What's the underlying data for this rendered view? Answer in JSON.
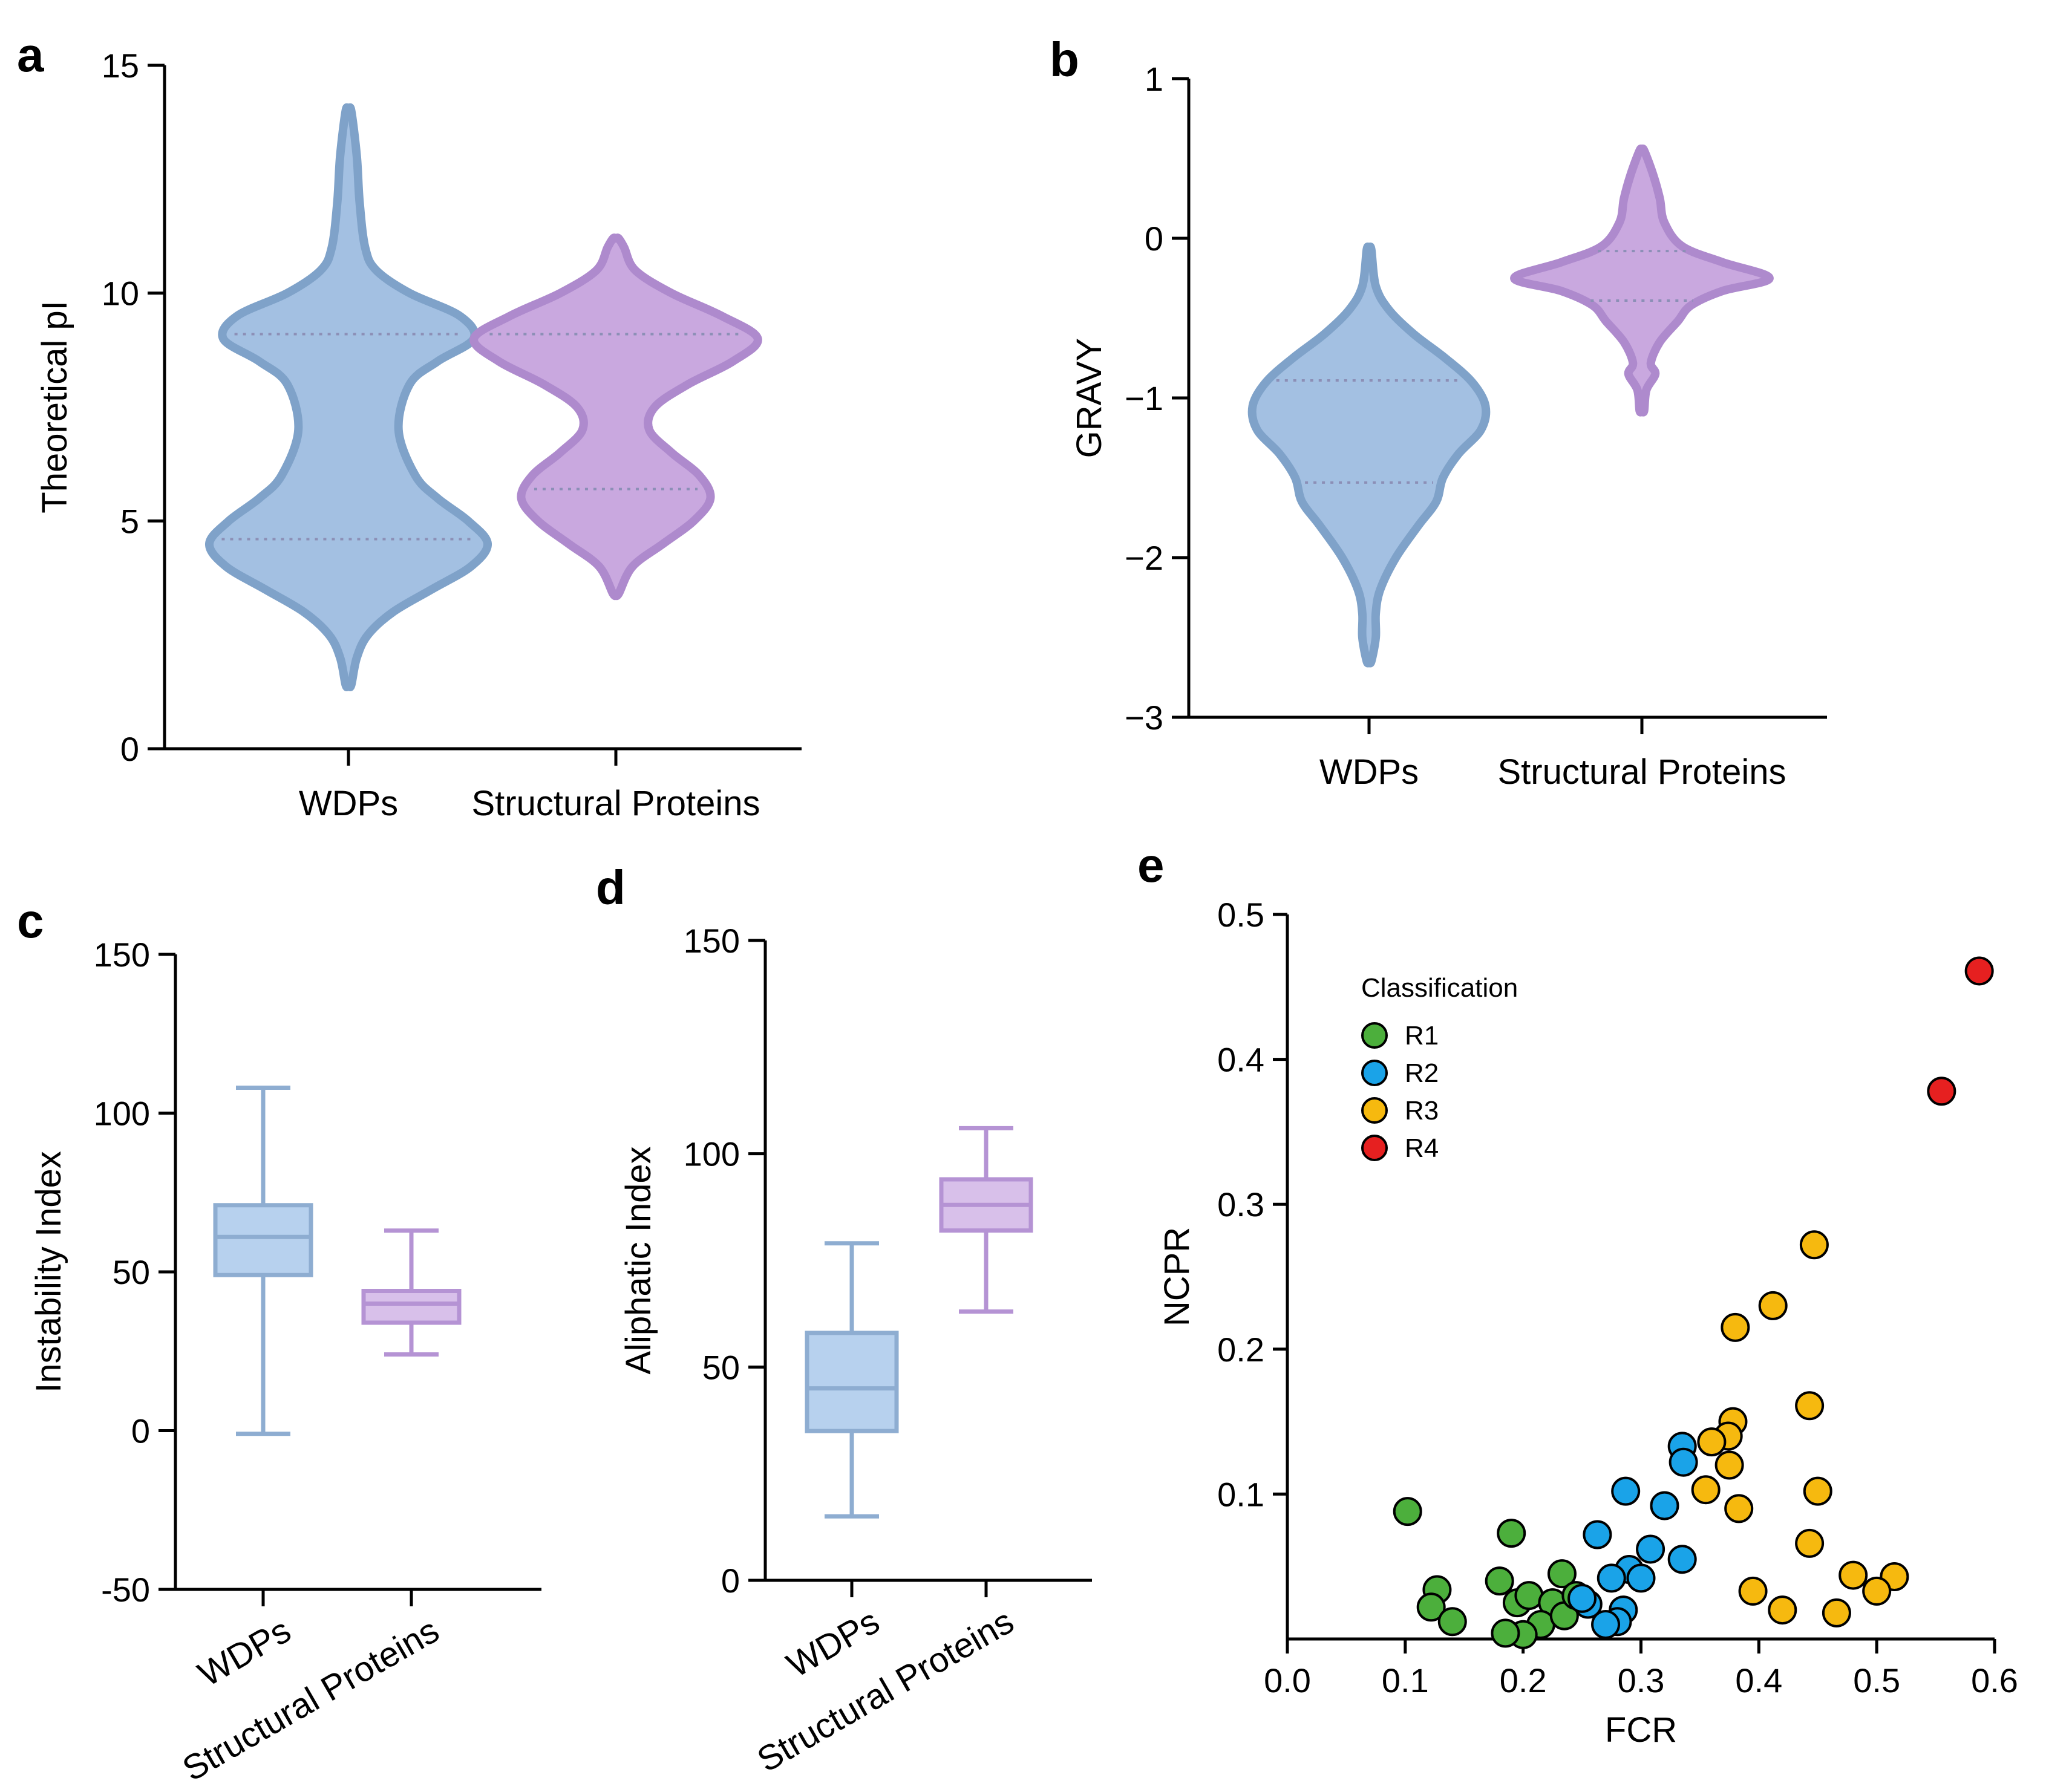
{
  "chart_data": [
    {
      "panel": "a",
      "type": "violin",
      "ylabel": "Theoretical pI",
      "categories": [
        "WDPs",
        "Structural Proteins"
      ],
      "ylim": [
        0,
        15
      ],
      "yticks": [
        0,
        5,
        10,
        15
      ],
      "ytick_labels": [
        "0",
        "5",
        "10",
        "15"
      ],
      "colors": [
        "#a3c0e2",
        "#c9a8df"
      ],
      "edge_colors": [
        "#7fa2c9",
        "#ae8acd"
      ],
      "series": [
        {
          "name": "WDPs",
          "quartiles": [
            4.6,
            9.1
          ],
          "profile": [
            [
              1.4,
              0.01
            ],
            [
              2,
              0.03
            ],
            [
              2.5,
              0.07
            ],
            [
              3,
              0.16
            ],
            [
              3.5,
              0.3
            ],
            [
              4,
              0.44
            ],
            [
              4.5,
              0.5
            ],
            [
              5,
              0.43
            ],
            [
              5.5,
              0.32
            ],
            [
              6,
              0.24
            ],
            [
              7,
              0.18
            ],
            [
              8,
              0.22
            ],
            [
              8.5,
              0.32
            ],
            [
              9,
              0.45
            ],
            [
              9.5,
              0.4
            ],
            [
              10,
              0.22
            ],
            [
              10.5,
              0.1
            ],
            [
              11,
              0.06
            ],
            [
              12,
              0.04
            ],
            [
              13,
              0.03
            ],
            [
              14,
              0.01
            ]
          ]
        },
        {
          "name": "Structural Proteins",
          "quartiles": [
            5.7,
            9.1
          ],
          "profile": [
            [
              3.4,
              0.01
            ],
            [
              4,
              0.06
            ],
            [
              4.5,
              0.17
            ],
            [
              5,
              0.28
            ],
            [
              5.5,
              0.34
            ],
            [
              6,
              0.3
            ],
            [
              6.5,
              0.2
            ],
            [
              7,
              0.12
            ],
            [
              7.5,
              0.14
            ],
            [
              8,
              0.26
            ],
            [
              8.5,
              0.42
            ],
            [
              9,
              0.51
            ],
            [
              9.5,
              0.38
            ],
            [
              10,
              0.2
            ],
            [
              10.5,
              0.07
            ],
            [
              11,
              0.03
            ],
            [
              11.2,
              0.01
            ]
          ]
        }
      ]
    },
    {
      "panel": "b",
      "type": "violin",
      "ylabel": "GRAVY",
      "categories": [
        "WDPs",
        "Structural Proteins"
      ],
      "ylim": [
        -3,
        1
      ],
      "yticks": [
        -3,
        -2,
        -1,
        0,
        1
      ],
      "ytick_labels": [
        "−3",
        "−2",
        "−1",
        "0",
        "1"
      ],
      "colors": [
        "#a3c0e2",
        "#c9a8df"
      ],
      "edge_colors": [
        "#7fa2c9",
        "#ae8acd"
      ],
      "series": [
        {
          "name": "WDPs",
          "quartiles": [
            -1.53,
            -0.89
          ],
          "profile": [
            [
              -2.65,
              0.01
            ],
            [
              -2.5,
              0.03
            ],
            [
              -2.35,
              0.03
            ],
            [
              -2.2,
              0.05
            ],
            [
              -2.0,
              0.12
            ],
            [
              -1.8,
              0.22
            ],
            [
              -1.65,
              0.3
            ],
            [
              -1.5,
              0.33
            ],
            [
              -1.35,
              0.4
            ],
            [
              -1.2,
              0.5
            ],
            [
              -1.05,
              0.52
            ],
            [
              -0.9,
              0.46
            ],
            [
              -0.75,
              0.34
            ],
            [
              -0.6,
              0.2
            ],
            [
              -0.45,
              0.09
            ],
            [
              -0.3,
              0.03
            ],
            [
              -0.07,
              0.01
            ]
          ]
        },
        {
          "name": "Structural Proteins",
          "quartiles": [
            -0.39,
            -0.08
          ],
          "profile": [
            [
              -1.08,
              0.01
            ],
            [
              -0.95,
              0.02
            ],
            [
              -0.85,
              0.06
            ],
            [
              -0.78,
              0.04
            ],
            [
              -0.65,
              0.08
            ],
            [
              -0.52,
              0.16
            ],
            [
              -0.42,
              0.22
            ],
            [
              -0.33,
              0.36
            ],
            [
              -0.25,
              0.57
            ],
            [
              -0.15,
              0.36
            ],
            [
              -0.05,
              0.18
            ],
            [
              0.1,
              0.1
            ],
            [
              0.25,
              0.08
            ],
            [
              0.4,
              0.05
            ],
            [
              0.55,
              0.01
            ]
          ]
        }
      ]
    },
    {
      "panel": "c",
      "type": "box",
      "ylabel": "Instability Index",
      "categories": [
        "WDPs",
        "Structural Proteins"
      ],
      "ylim": [
        -50,
        150
      ],
      "yticks": [
        -50,
        0,
        50,
        100,
        150
      ],
      "ytick_labels": [
        "-50",
        "0",
        "50",
        "100",
        "150"
      ],
      "colors": [
        "#b7d1ee",
        "#d8c0ea"
      ],
      "edge_colors": [
        "#8eadd1",
        "#b593d4"
      ],
      "series": [
        {
          "name": "WDPs",
          "min": -1,
          "q1": 49,
          "median": 61,
          "q3": 71,
          "max": 108
        },
        {
          "name": "Structural Proteins",
          "min": 24,
          "q1": 34,
          "median": 40,
          "q3": 44,
          "max": 63
        }
      ]
    },
    {
      "panel": "d",
      "type": "box",
      "ylabel": "Aliphatic Index",
      "categories": [
        "WDPs",
        "Structural Proteins"
      ],
      "ylim": [
        0,
        150
      ],
      "yticks": [
        0,
        50,
        100,
        150
      ],
      "ytick_labels": [
        "0",
        "50",
        "100",
        "150"
      ],
      "colors": [
        "#b7d1ee",
        "#d8c0ea"
      ],
      "edge_colors": [
        "#8eadd1",
        "#b593d4"
      ],
      "series": [
        {
          "name": "WDPs",
          "min": 15,
          "q1": 35,
          "median": 45,
          "q3": 58,
          "max": 79
        },
        {
          "name": "Structural Proteins",
          "min": 63,
          "q1": 82,
          "median": 88,
          "q3": 94,
          "max": 106
        }
      ]
    },
    {
      "panel": "e",
      "type": "scatter",
      "xlabel": "FCR",
      "ylabel": "NCPR",
      "xlim": [
        0,
        0.6
      ],
      "ylim": [
        0,
        0.5
      ],
      "xticks": [
        0,
        0.1,
        0.2,
        0.3,
        0.4,
        0.5,
        0.6
      ],
      "xtick_labels": [
        "0.0",
        "0.1",
        "0.2",
        "0.3",
        "0.4",
        "0.5",
        "0.6"
      ],
      "yticks": [
        0.1,
        0.2,
        0.3,
        0.4,
        0.5
      ],
      "ytick_labels": [
        "0.1",
        "0.2",
        "0.3",
        "0.4",
        "0.5"
      ],
      "legend_title": "Classification",
      "legend_position": "top-left",
      "series": [
        {
          "name": "R1",
          "color": "#4caf3c",
          "points": [
            [
              0.102,
              0.088
            ],
            [
              0.127,
              0.034
            ],
            [
              0.122,
              0.022
            ],
            [
              0.14,
              0.012
            ],
            [
              0.19,
              0.073
            ],
            [
              0.18,
              0.04
            ],
            [
              0.195,
              0.025
            ],
            [
              0.205,
              0.03
            ],
            [
              0.233,
              0.045
            ],
            [
              0.225,
              0.025
            ],
            [
              0.215,
              0.01
            ],
            [
              0.2,
              0.003
            ],
            [
              0.185,
              0.004
            ],
            [
              0.235,
              0.016
            ],
            [
              0.245,
              0.03
            ]
          ]
        },
        {
          "name": "R2",
          "color": "#1aa3e8",
          "points": [
            [
              0.335,
              0.133
            ],
            [
              0.336,
              0.122
            ],
            [
              0.287,
              0.102
            ],
            [
              0.263,
              0.072
            ],
            [
              0.32,
              0.092
            ],
            [
              0.308,
              0.062
            ],
            [
              0.335,
              0.055
            ],
            [
              0.29,
              0.048
            ],
            [
              0.275,
              0.042
            ],
            [
              0.3,
              0.042
            ],
            [
              0.255,
              0.024
            ],
            [
              0.25,
              0.028
            ],
            [
              0.285,
              0.02
            ],
            [
              0.28,
              0.012
            ],
            [
              0.27,
              0.01
            ]
          ]
        },
        {
          "name": "R3",
          "color": "#f6b90f",
          "points": [
            [
              0.447,
              0.272
            ],
            [
              0.412,
              0.23
            ],
            [
              0.38,
              0.215
            ],
            [
              0.443,
              0.161
            ],
            [
              0.378,
              0.15
            ],
            [
              0.374,
              0.14
            ],
            [
              0.36,
              0.136
            ],
            [
              0.375,
              0.12
            ],
            [
              0.355,
              0.103
            ],
            [
              0.45,
              0.102
            ],
            [
              0.383,
              0.09
            ],
            [
              0.443,
              0.066
            ],
            [
              0.48,
              0.044
            ],
            [
              0.515,
              0.043
            ],
            [
              0.5,
              0.033
            ],
            [
              0.395,
              0.033
            ],
            [
              0.42,
              0.02
            ],
            [
              0.466,
              0.018
            ]
          ]
        },
        {
          "name": "R4",
          "color": "#e62020",
          "points": [
            [
              0.587,
              0.461
            ],
            [
              0.555,
              0.378
            ]
          ]
        }
      ]
    }
  ],
  "panel_labels": {
    "a": "a",
    "b": "b",
    "c": "c",
    "d": "d",
    "e": "e"
  }
}
